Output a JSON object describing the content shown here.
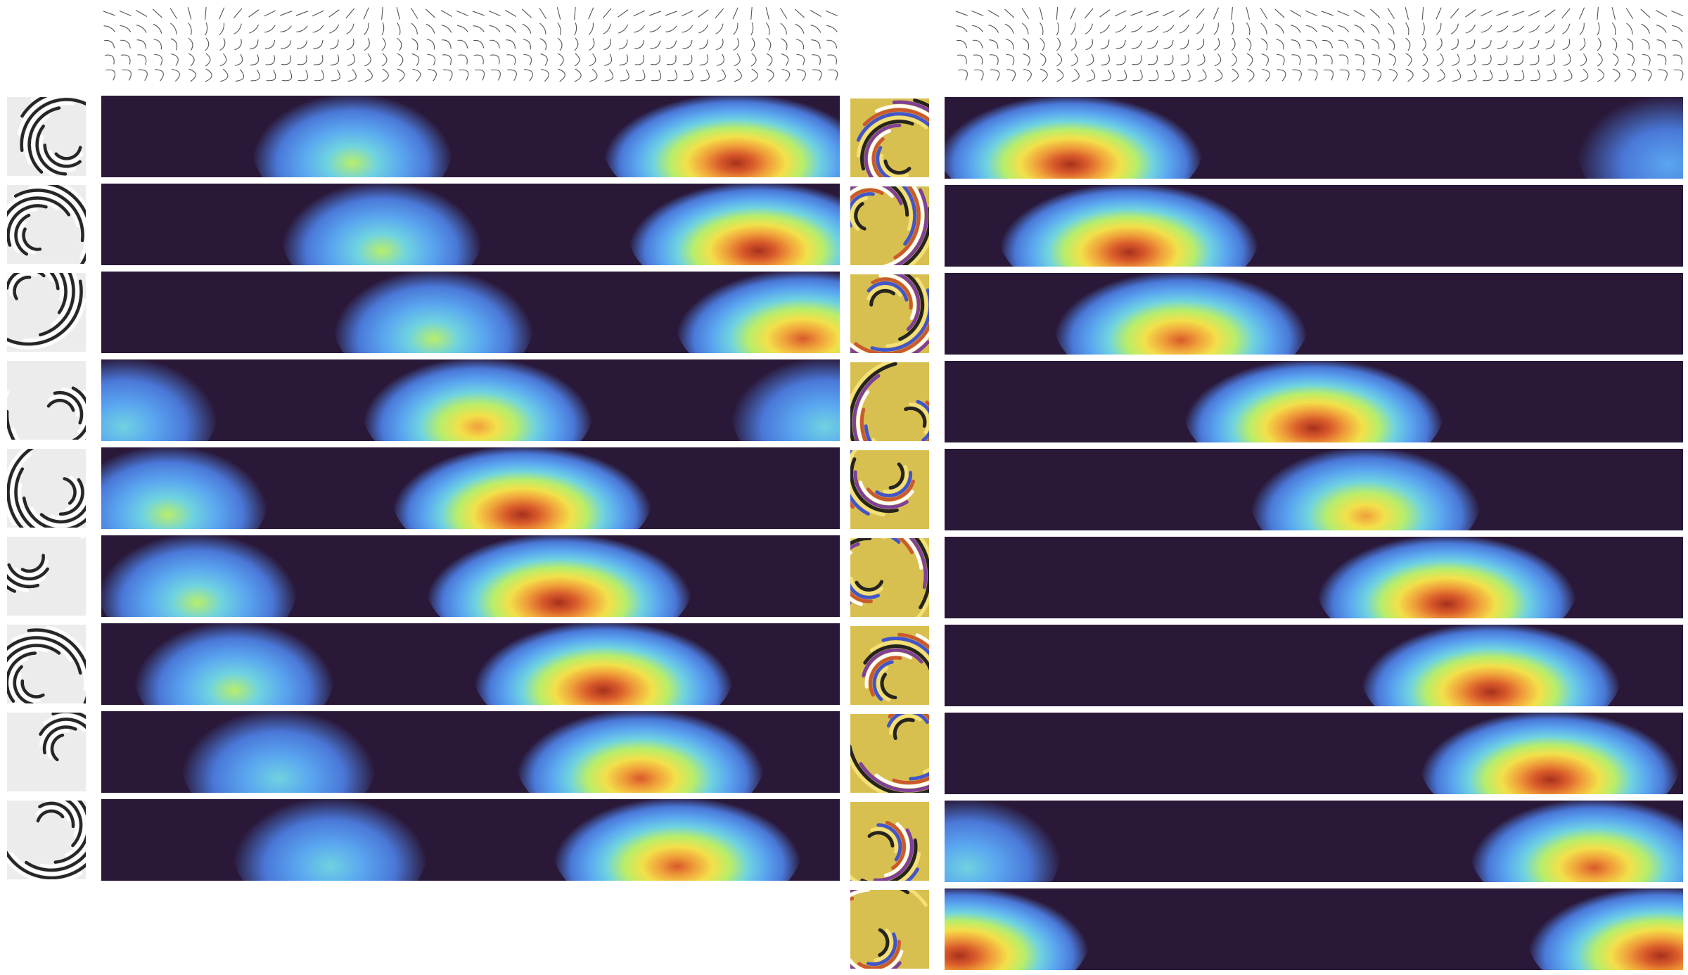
{
  "figure": {
    "left_panel": {
      "name": "left",
      "rows": [
        {
          "peaks": [
            {
              "center": 0.34,
              "level": 0.45
            },
            {
              "center": 0.86,
              "level": 1.0
            }
          ]
        },
        {
          "peaks": [
            {
              "center": 0.38,
              "level": 0.45
            },
            {
              "center": 0.89,
              "level": 0.95
            }
          ]
        },
        {
          "peaks": [
            {
              "center": 0.45,
              "level": 0.45
            },
            {
              "center": 0.95,
              "level": 0.9
            }
          ]
        },
        {
          "peaks": [
            {
              "center": 0.51,
              "level": 0.7
            },
            {
              "center": 0.03,
              "level": 0.35
            },
            {
              "center": 0.98,
              "level": 0.35
            }
          ]
        },
        {
          "peaks": [
            {
              "center": 0.57,
              "level": 0.95
            },
            {
              "center": 0.09,
              "level": 0.45
            }
          ]
        },
        {
          "peaks": [
            {
              "center": 0.62,
              "level": 1.0
            },
            {
              "center": 0.13,
              "level": 0.45
            }
          ]
        },
        {
          "peaks": [
            {
              "center": 0.68,
              "level": 0.95
            },
            {
              "center": 0.18,
              "level": 0.45
            }
          ]
        },
        {
          "peaks": [
            {
              "center": 0.73,
              "level": 0.85
            },
            {
              "center": 0.24,
              "level": 0.4
            }
          ]
        },
        {
          "peaks": [
            {
              "center": 0.78,
              "level": 0.85
            },
            {
              "center": 0.31,
              "level": 0.4
            }
          ]
        }
      ]
    },
    "right_panel": {
      "name": "right",
      "rows": [
        {
          "peaks": [
            {
              "center": 0.17,
              "level": 1.0
            },
            {
              "center": 0.98,
              "level": 0.3
            }
          ]
        },
        {
          "peaks": [
            {
              "center": 0.25,
              "level": 0.95
            }
          ]
        },
        {
          "peaks": [
            {
              "center": 0.32,
              "level": 0.9
            }
          ]
        },
        {
          "peaks": [
            {
              "center": 0.5,
              "level": 0.95
            }
          ]
        },
        {
          "peaks": [
            {
              "center": 0.57,
              "level": 0.7
            }
          ]
        },
        {
          "peaks": [
            {
              "center": 0.68,
              "level": 0.95
            }
          ]
        },
        {
          "peaks": [
            {
              "center": 0.74,
              "level": 0.95
            }
          ]
        },
        {
          "peaks": [
            {
              "center": 0.82,
              "level": 0.95
            }
          ]
        },
        {
          "peaks": [
            {
              "center": 0.88,
              "level": 0.85
            },
            {
              "center": 0.03,
              "level": 0.35
            }
          ]
        },
        {
          "peaks": [
            {
              "center": 0.97,
              "level": 1.0
            },
            {
              "center": 0.02,
              "level": 0.95
            }
          ]
        }
      ]
    },
    "colormap": [
      "#2a1838",
      "#4a78d8",
      "#5aa6f0",
      "#6fd3e0",
      "#b8ee6a",
      "#f3e04a",
      "#f0a03a",
      "#d85a2a",
      "#a8301c"
    ]
  }
}
